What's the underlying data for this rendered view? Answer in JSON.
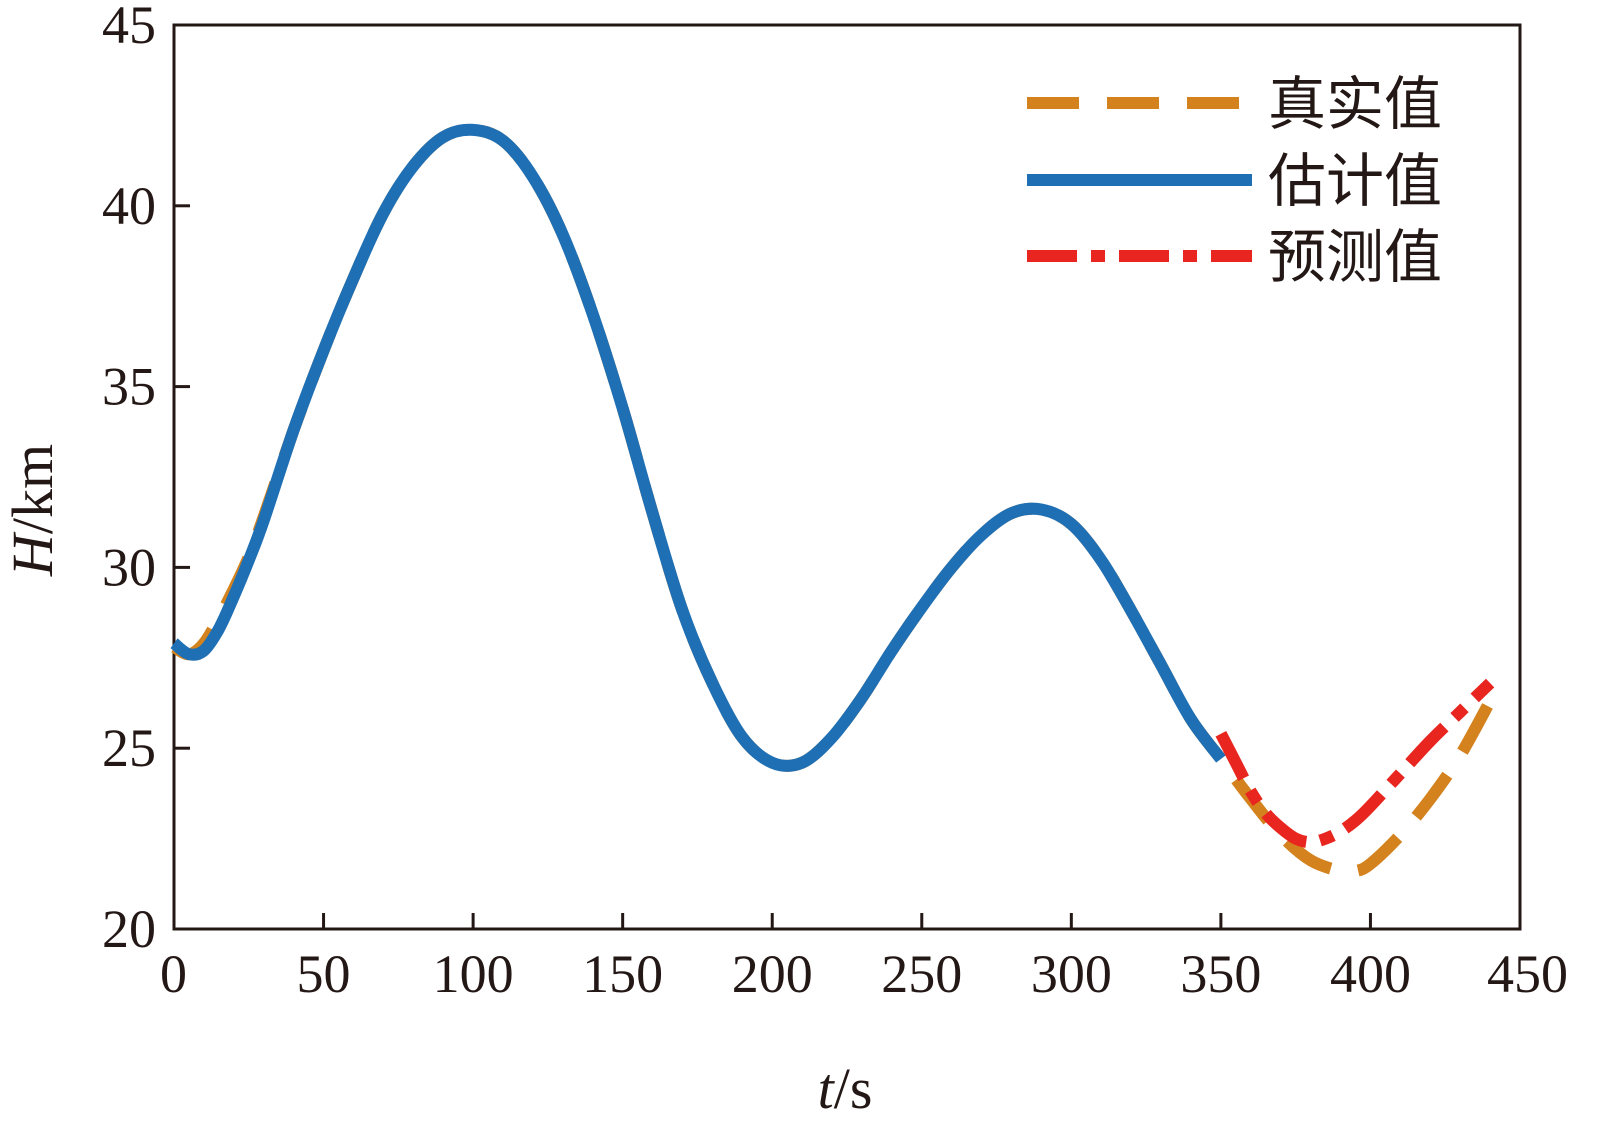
{
  "chart_data": {
    "type": "line",
    "title": "",
    "xlabel_italic": "t",
    "xlabel_unit": "/s",
    "ylabel_italic": "H",
    "ylabel_unit": "/km",
    "xlim": [
      0,
      450
    ],
    "ylim": [
      20,
      45
    ],
    "xticks": [
      0,
      50,
      100,
      150,
      200,
      250,
      300,
      350,
      400,
      450
    ],
    "yticks": [
      20,
      25,
      30,
      35,
      40,
      45
    ],
    "grid": false,
    "legend_position": "top-right",
    "series": [
      {
        "name": "真实值",
        "color": "#D4821E",
        "style": "dashed",
        "x": [
          0,
          5,
          10,
          15,
          20,
          25,
          30,
          40,
          50,
          60,
          70,
          80,
          90,
          100,
          110,
          120,
          130,
          140,
          150,
          160,
          170,
          180,
          190,
          200,
          210,
          220,
          230,
          240,
          250,
          260,
          270,
          280,
          290,
          300,
          310,
          320,
          330,
          340,
          350,
          360,
          370,
          380,
          390,
          395,
          400,
          410,
          420,
          430,
          440
        ],
        "y": [
          27.8,
          27.6,
          27.9,
          28.6,
          29.4,
          30.3,
          31.4,
          33.8,
          36.0,
          38.0,
          39.8,
          41.1,
          41.9,
          42.1,
          41.8,
          40.8,
          39.2,
          37.0,
          34.4,
          31.5,
          28.8,
          26.8,
          25.3,
          24.6,
          24.6,
          25.3,
          26.4,
          27.7,
          28.9,
          30.0,
          30.9,
          31.5,
          31.6,
          31.2,
          30.2,
          28.8,
          27.3,
          25.8,
          24.7,
          23.6,
          22.6,
          21.9,
          21.6,
          21.6,
          21.8,
          22.6,
          23.6,
          24.8,
          26.3
        ]
      },
      {
        "name": "估计值",
        "color": "#1F6FB4",
        "style": "solid",
        "x": [
          0,
          5,
          10,
          15,
          20,
          25,
          30,
          40,
          50,
          60,
          70,
          80,
          90,
          100,
          110,
          120,
          130,
          140,
          150,
          160,
          170,
          180,
          190,
          200,
          210,
          220,
          230,
          240,
          250,
          260,
          270,
          280,
          290,
          300,
          310,
          320,
          330,
          340,
          350
        ],
        "y": [
          27.9,
          27.6,
          27.7,
          28.3,
          29.2,
          30.2,
          31.3,
          33.8,
          36.0,
          38.0,
          39.8,
          41.1,
          41.9,
          42.1,
          41.8,
          40.8,
          39.2,
          37.0,
          34.4,
          31.5,
          28.8,
          26.8,
          25.3,
          24.6,
          24.6,
          25.3,
          26.4,
          27.7,
          28.9,
          30.0,
          30.9,
          31.5,
          31.6,
          31.2,
          30.2,
          28.8,
          27.3,
          25.8,
          24.7
        ]
      },
      {
        "name": "预测值",
        "color": "#E8261F",
        "style": "dashdot",
        "x": [
          350,
          355,
          360,
          365,
          370,
          375,
          380,
          385,
          390,
          395,
          400,
          410,
          420,
          430,
          440
        ],
        "y": [
          25.4,
          24.6,
          23.8,
          23.2,
          22.8,
          22.5,
          22.4,
          22.5,
          22.7,
          23.0,
          23.4,
          24.3,
          25.2,
          26.0,
          26.8
        ]
      }
    ]
  }
}
